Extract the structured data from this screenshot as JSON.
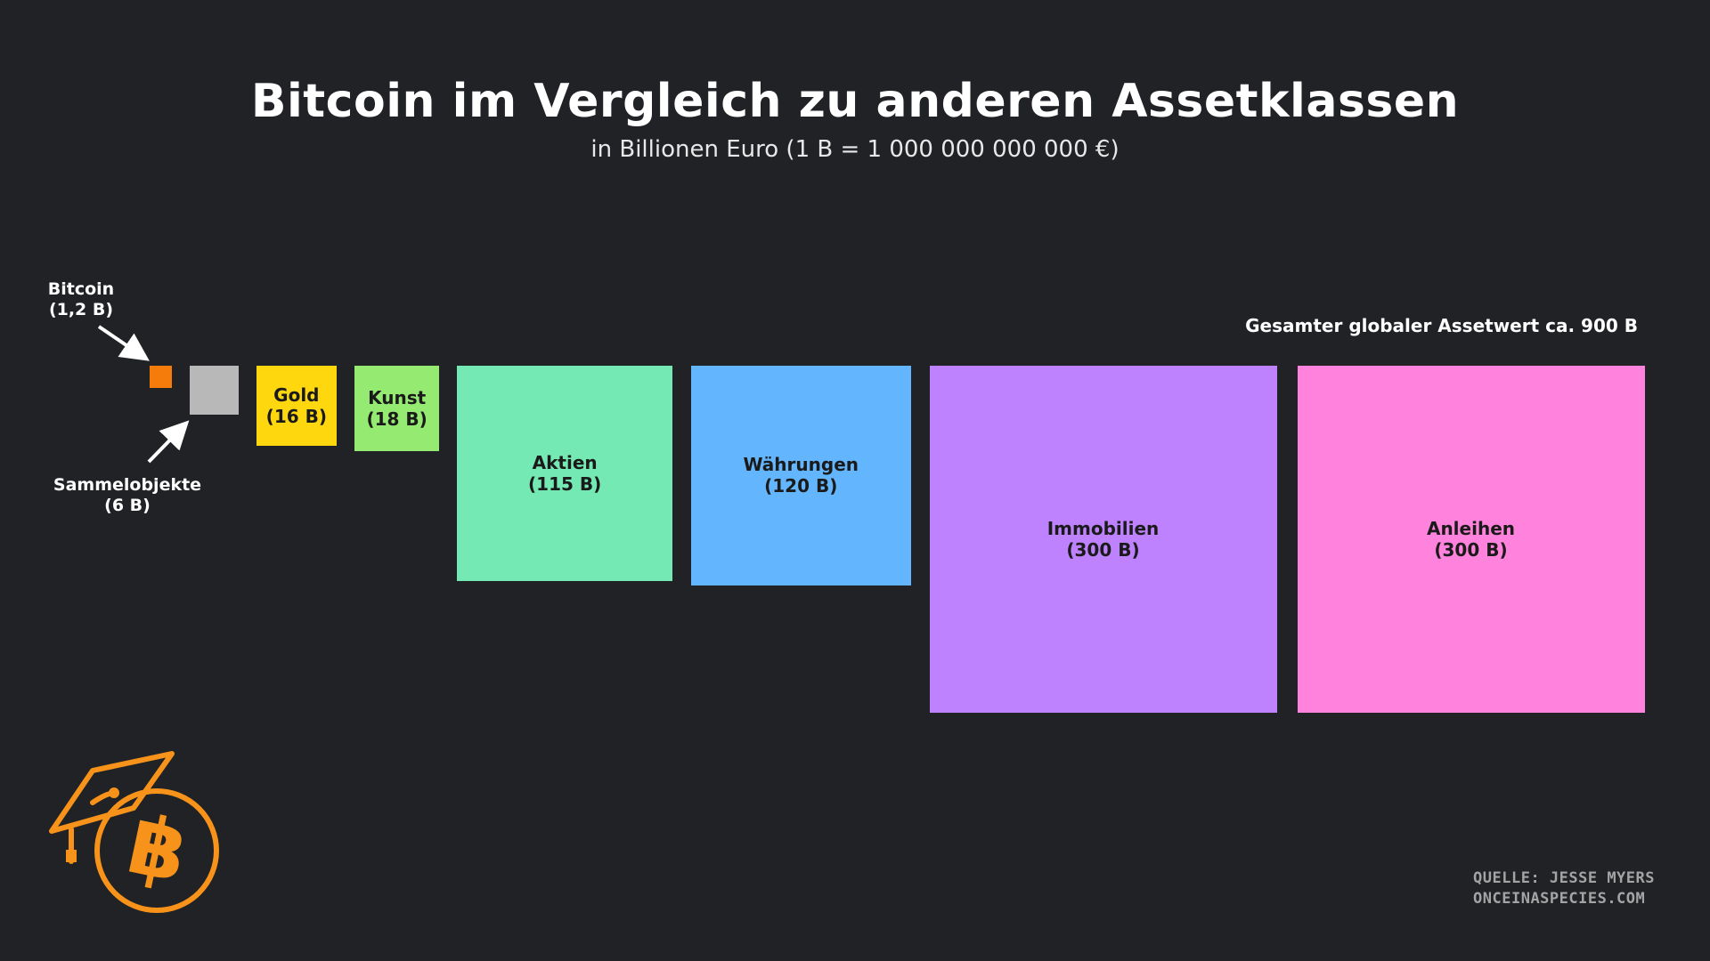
{
  "title": "Bitcoin im Vergleich zu anderen Assetklassen",
  "subtitle": "in Billionen Euro (1 B = 1 000 000 000 000 €)",
  "total_label": "Gesamter globaler Assetwert ca. 900 B",
  "source_line1": "QUELLE: JESSE MYERS",
  "source_line2": "ONCEINASPECIES.COM",
  "logo_icon": "graduation-cap-bitcoin-icon",
  "colors": {
    "background": "#202226",
    "logo": "#f7931a"
  },
  "chart_data": {
    "type": "proportional-squares",
    "unit": "B",
    "items": [
      {
        "name": "Bitcoin",
        "value_label": "(1,2 B)",
        "value": 1.2,
        "color": "#f57c0b",
        "label_outside": true
      },
      {
        "name": "Sammelobjekte",
        "value_label": "(6 B)",
        "value": 6,
        "color": "#b8b8b8",
        "label_outside": true
      },
      {
        "name": "Gold",
        "value_label": "(16 B)",
        "value": 16,
        "color": "#ffd70e",
        "label_outside": false
      },
      {
        "name": "Kunst",
        "value_label": "(18 B)",
        "value": 18,
        "color": "#95eb72",
        "label_outside": false
      },
      {
        "name": "Aktien",
        "value_label": "(115 B)",
        "value": 115,
        "color": "#74e9b3",
        "label_outside": false
      },
      {
        "name": "Währungen",
        "value_label": "(120 B)",
        "value": 120,
        "color": "#63b6fe",
        "label_outside": false
      },
      {
        "name": "Immobilien",
        "value_label": "(300 B)",
        "value": 300,
        "color": "#bf82fe",
        "label_outside": false
      },
      {
        "name": "Anleihen",
        "value_label": "(300 B)",
        "value": 300,
        "color": "#ff82dc",
        "label_outside": false
      }
    ]
  }
}
